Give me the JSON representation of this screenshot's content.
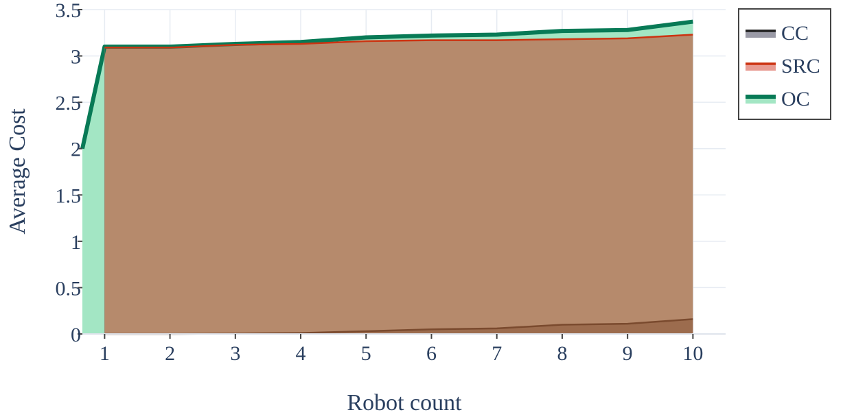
{
  "chart_data": {
    "type": "area",
    "xlabel": "Robot count",
    "ylabel": "Average Cost",
    "x": [
      0.66,
      1,
      2,
      3,
      4,
      5,
      6,
      7,
      8,
      9,
      10
    ],
    "xlim": [
      0.66,
      10.5
    ],
    "ylim": [
      0,
      3.5
    ],
    "xticks": [
      "1",
      "2",
      "3",
      "4",
      "5",
      "6",
      "7",
      "8",
      "9",
      "10"
    ],
    "yticks": [
      "0",
      "0.5",
      "1",
      "1.5",
      "2",
      "2.5",
      "3",
      "3.5"
    ],
    "grid": true,
    "legend_position": "top-right",
    "series": [
      {
        "name": "OC",
        "line_color": "#087a56",
        "fill_color": "#a3e6c4",
        "values": [
          2.0,
          3.1,
          3.1,
          3.13,
          3.15,
          3.2,
          3.22,
          3.23,
          3.27,
          3.28,
          3.37
        ]
      },
      {
        "name": "SRC",
        "line_color": "#cc3311",
        "fill_color": "#b7886a",
        "values": [
          null,
          3.09,
          3.09,
          3.12,
          3.13,
          3.16,
          3.17,
          3.17,
          3.18,
          3.19,
          3.23
        ]
      },
      {
        "name": "CC",
        "line_color": "#7a4a2e",
        "fill_color": "#9b6b4e",
        "values": [
          null,
          0.0,
          0.0,
          0.005,
          0.01,
          0.03,
          0.05,
          0.06,
          0.1,
          0.11,
          0.16
        ]
      }
    ],
    "legend": [
      {
        "name": "CC",
        "line_color": "#1f1f1f",
        "fill_color": "#9a9aa6"
      },
      {
        "name": "SRC",
        "line_color": "#cc3311",
        "fill_color": "#e89b92"
      },
      {
        "name": "OC",
        "line_color": "#087a56",
        "fill_color": "#a3e6c4"
      }
    ]
  }
}
